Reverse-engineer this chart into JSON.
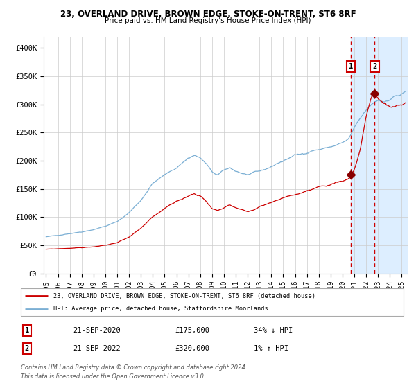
{
  "title": "23, OVERLAND DRIVE, BROWN EDGE, STOKE-ON-TRENT, ST6 8RF",
  "subtitle": "Price paid vs. HM Land Registry's House Price Index (HPI)",
  "ylabel_ticks": [
    "£0",
    "£50K",
    "£100K",
    "£150K",
    "£200K",
    "£250K",
    "£300K",
    "£350K",
    "£400K"
  ],
  "ytick_vals": [
    0,
    50000,
    100000,
    150000,
    200000,
    250000,
    300000,
    350000,
    400000
  ],
  "ylim": [
    0,
    420000
  ],
  "xlim_start": 1994.8,
  "xlim_end": 2025.5,
  "xtick_years": [
    1995,
    1996,
    1997,
    1998,
    1999,
    2000,
    2001,
    2002,
    2003,
    2004,
    2005,
    2006,
    2007,
    2008,
    2009,
    2010,
    2011,
    2012,
    2013,
    2014,
    2015,
    2016,
    2017,
    2018,
    2019,
    2020,
    2021,
    2022,
    2023,
    2024,
    2025
  ],
  "red_line_color": "#cc0000",
  "blue_line_color": "#7bafd4",
  "marker_color": "#880000",
  "sale1_x": 2020.72,
  "sale1_y": 175000,
  "sale2_x": 2022.72,
  "sale2_y": 320000,
  "vline1_x": 2020.72,
  "vline2_x": 2022.72,
  "shade_start": 2020.72,
  "shade_end": 2025.5,
  "shade_color": "#ddeeff",
  "legend_red_label": "23, OVERLAND DRIVE, BROWN EDGE, STOKE-ON-TRENT, ST6 8RF (detached house)",
  "legend_blue_label": "HPI: Average price, detached house, Staffordshire Moorlands",
  "table_row1": [
    "1",
    "21-SEP-2020",
    "£175,000",
    "34% ↓ HPI"
  ],
  "table_row2": [
    "2",
    "21-SEP-2022",
    "£320,000",
    "1% ↑ HPI"
  ],
  "footnote1": "Contains HM Land Registry data © Crown copyright and database right 2024.",
  "footnote2": "This data is licensed under the Open Government Licence v3.0.",
  "background_color": "#ffffff",
  "plot_bg_color": "#ffffff",
  "grid_color": "#cccccc"
}
